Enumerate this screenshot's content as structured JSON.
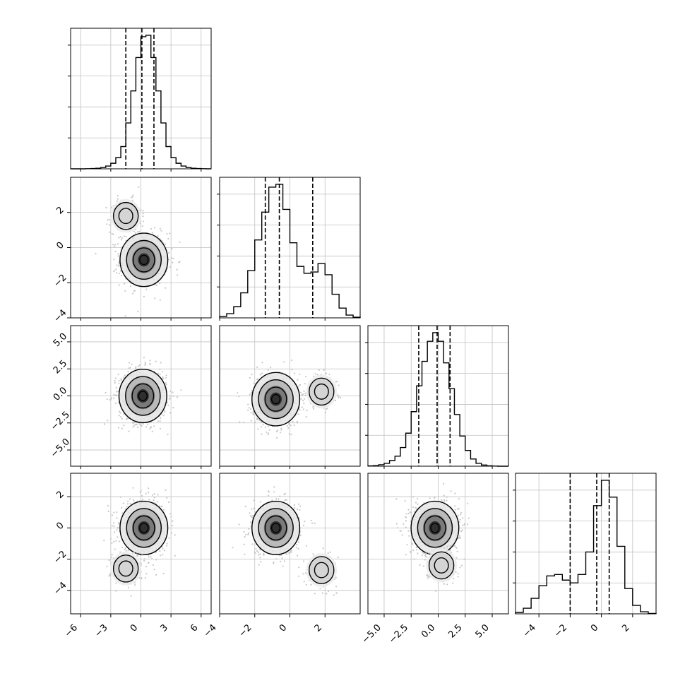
{
  "chart_data": {
    "type": "corner",
    "variables": [
      {
        "index": 0,
        "range": [
          -7,
          7
        ],
        "ticks": [
          -6,
          -3,
          0,
          3,
          6
        ],
        "tick_labels": [
          "−6",
          "−3",
          "0",
          "3",
          "6"
        ],
        "quantiles": [
          -1.5,
          0.1,
          1.3
        ]
      },
      {
        "index": 1,
        "range": [
          -4,
          4
        ],
        "ticks": [
          -4,
          -2,
          0,
          2
        ],
        "tick_labels": [
          "−4",
          "−2",
          "0",
          "2"
        ],
        "quantiles": [
          -1.4,
          -0.6,
          1.3
        ]
      },
      {
        "index": 2,
        "range": [
          -6.5,
          6.5
        ],
        "ticks": [
          -5,
          -2.5,
          0,
          2.5,
          5
        ],
        "tick_labels": [
          "−5.0",
          "−2.5",
          "0.0",
          "2.5",
          "5.0"
        ],
        "quantiles": [
          -1.8,
          -0.1,
          1.1
        ]
      },
      {
        "index": 3,
        "range": [
          -5.5,
          3.5
        ],
        "ticks": [
          -4,
          -2,
          0,
          2
        ],
        "tick_labels": [
          "−4",
          "−2",
          "0",
          "2"
        ],
        "quantiles": [
          -2.0,
          -0.3,
          0.5
        ]
      }
    ],
    "diagonal_histograms": [
      {
        "variable": 0,
        "bin_edges": [
          -7,
          -6.5,
          -6,
          -5.5,
          -5,
          -4.5,
          -4,
          -3.5,
          -3,
          -2.5,
          -2,
          -1.5,
          -1,
          -0.5,
          0,
          0.5,
          1,
          1.5,
          2,
          2.5,
          3,
          3.5,
          4,
          4.5,
          5,
          5.5,
          6,
          6.5,
          7
        ],
        "counts": [
          0,
          0,
          0,
          1,
          2,
          4,
          9,
          20,
          40,
          80,
          160,
          330,
          560,
          800,
          950,
          960,
          800,
          560,
          330,
          160,
          80,
          40,
          20,
          9,
          4,
          2,
          1,
          0
        ]
      },
      {
        "variable": 1,
        "bin_edges": [
          -4,
          -3.6,
          -3.2,
          -2.8,
          -2.4,
          -2,
          -1.6,
          -1.2,
          -0.8,
          -0.4,
          0,
          0.4,
          0.8,
          1.2,
          1.6,
          2,
          2.4,
          2.8,
          3.2,
          3.6,
          4
        ],
        "counts": [
          10,
          30,
          80,
          180,
          340,
          560,
          760,
          940,
          960,
          780,
          540,
          370,
          320,
          330,
          390,
          310,
          170,
          70,
          20,
          5
        ]
      },
      {
        "variable": 2,
        "bin_edges": [
          -6.5,
          -6,
          -5.5,
          -5,
          -4.5,
          -4,
          -3.5,
          -3,
          -2.5,
          -2,
          -1.5,
          -1,
          -0.5,
          0,
          0.5,
          1,
          1.5,
          2,
          2.5,
          3,
          3.5,
          4,
          4.5,
          5,
          5.5,
          6,
          6.5
        ],
        "counts": [
          2,
          4,
          10,
          20,
          40,
          70,
          130,
          230,
          380,
          560,
          730,
          870,
          930,
          870,
          720,
          540,
          360,
          210,
          110,
          50,
          20,
          8,
          3,
          1,
          0,
          0
        ]
      },
      {
        "variable": 3,
        "bin_edges": [
          -5.5,
          -5,
          -4.5,
          -4,
          -3.5,
          -3,
          -2.5,
          -2,
          -1.5,
          -1,
          -0.5,
          0,
          0.5,
          1,
          1.5,
          2,
          2.5,
          3,
          3.5
        ],
        "counts": [
          10,
          40,
          110,
          200,
          270,
          280,
          240,
          220,
          280,
          440,
          770,
          950,
          830,
          480,
          180,
          60,
          15,
          3
        ]
      }
    ],
    "pairs": [
      {
        "x": 0,
        "y": 1,
        "modes": [
          {
            "center": [
              0.3,
              -0.7
            ],
            "weight": 0.78
          },
          {
            "center": [
              -1.5,
              1.8
            ],
            "weight": 0.22
          }
        ]
      },
      {
        "x": 0,
        "y": 2,
        "modes": [
          {
            "center": [
              0.2,
              0.0
            ],
            "weight": 1.0
          }
        ]
      },
      {
        "x": 1,
        "y": 2,
        "modes": [
          {
            "center": [
              -0.8,
              -0.3
            ],
            "weight": 0.8
          },
          {
            "center": [
              1.8,
              0.4
            ],
            "weight": 0.2
          }
        ]
      },
      {
        "x": 0,
        "y": 3,
        "modes": [
          {
            "center": [
              0.3,
              0.0
            ],
            "weight": 0.8
          },
          {
            "center": [
              -1.5,
              -2.6
            ],
            "weight": 0.2
          }
        ]
      },
      {
        "x": 1,
        "y": 3,
        "modes": [
          {
            "center": [
              -0.8,
              0.0
            ],
            "weight": 0.8
          },
          {
            "center": [
              1.8,
              -2.7
            ],
            "weight": 0.2
          }
        ]
      },
      {
        "x": 2,
        "y": 3,
        "modes": [
          {
            "center": [
              -0.3,
              0.0
            ],
            "weight": 0.8
          },
          {
            "center": [
              0.3,
              -2.4
            ],
            "weight": 0.2
          }
        ]
      }
    ],
    "contour_levels": 3,
    "grid": true,
    "colors": {
      "line": "#000000",
      "scatter": "#c8c8c8",
      "grid": "#c0c0c0"
    }
  }
}
